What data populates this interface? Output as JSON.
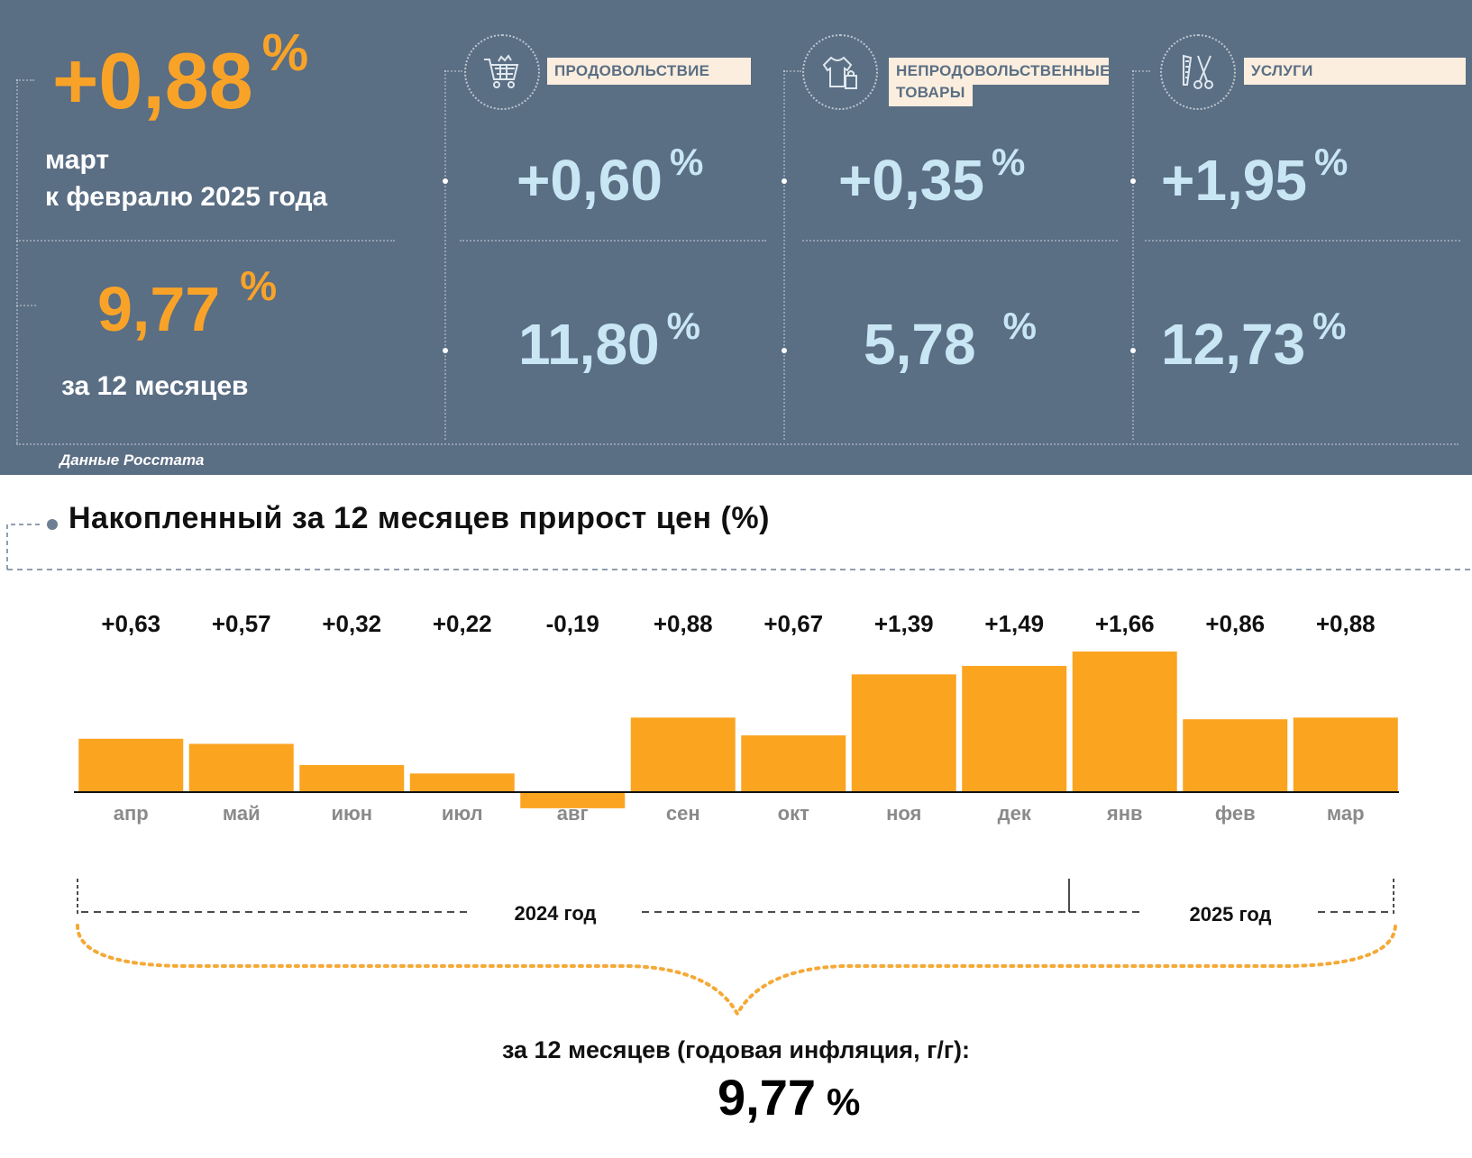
{
  "summary": {
    "monthly_value": "+0,88",
    "monthly_unit": "%",
    "monthly_caption_line1": "март",
    "monthly_caption_line2": "к февралю 2025 года",
    "annual_value": "9,77",
    "annual_unit": "%",
    "annual_caption": "за 12 месяцев"
  },
  "categories": [
    {
      "label": "ПРОДОВОЛЬСТВИЕ",
      "icon": "shopping-cart-icon",
      "monthly": "+0,60",
      "annual": "11,80",
      "unit": "%"
    },
    {
      "label_line1": "НЕПРОДОВОЛЬСТВЕННЫЕ",
      "label_line2": "ТОВАРЫ",
      "icon": "clothing-bag-icon",
      "monthly": "+0,35",
      "annual": "5,78",
      "unit": "%"
    },
    {
      "label": "УСЛУГИ",
      "icon": "comb-scissors-icon",
      "monthly": "+1,95",
      "annual": "12,73",
      "unit": "%"
    }
  ],
  "source": "Данные Росстата",
  "colors": {
    "panel_bg": "#5a6e84",
    "orange": "#f8a328",
    "light_blue": "#c9e6f5",
    "label_bg": "#fbeede",
    "bar": "#fba420"
  },
  "chart_data": {
    "type": "bar",
    "title": "Накопленный за 12 месяцев прирост цен (%)",
    "categories": [
      "апр",
      "май",
      "июн",
      "июл",
      "авг",
      "сен",
      "окт",
      "ноя",
      "дек",
      "янв",
      "фев",
      "мар"
    ],
    "values": [
      0.63,
      0.57,
      0.32,
      0.22,
      -0.19,
      0.88,
      0.67,
      1.39,
      1.49,
      1.66,
      0.86,
      0.88
    ],
    "value_labels": [
      "+0,63",
      "+0,57",
      "+0,32",
      "+0,22",
      "-0,19",
      "+0,88",
      "+0,67",
      "+1,39",
      "+1,49",
      "+1,66",
      "+0,86",
      "+0,88"
    ],
    "year_labels": [
      "2024 год",
      "2025 год"
    ],
    "caption": "за 12 месяцев (годовая инфляция, г/г):",
    "total": "9,77",
    "total_unit": "%"
  }
}
